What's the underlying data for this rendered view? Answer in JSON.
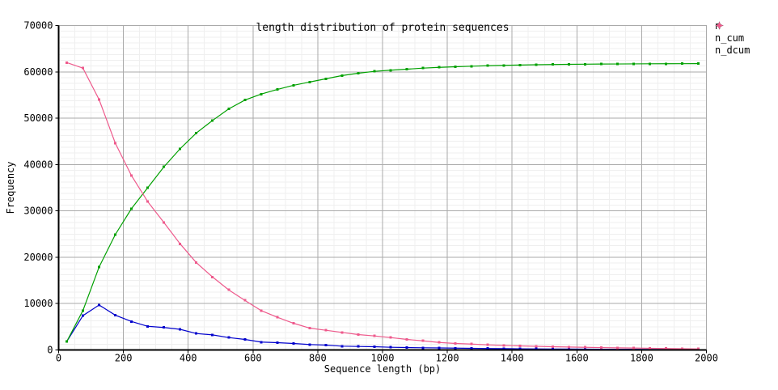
{
  "window": {
    "background": "#ffffff"
  },
  "chart_data": {
    "type": "line",
    "title": "length distribution of protein sequences",
    "xlabel": "Sequence length (bp)",
    "ylabel": "Frequency",
    "xlim": [
      0,
      2000
    ],
    "ylim": [
      0,
      70000
    ],
    "x_ticks": [
      0,
      200,
      400,
      600,
      800,
      1000,
      1200,
      1400,
      1600,
      1800,
      2000
    ],
    "y_ticks": [
      0,
      10000,
      20000,
      30000,
      40000,
      50000,
      60000,
      70000
    ],
    "x_minor_step": 50,
    "y_minor_step": 1250,
    "grid": true,
    "legend_position": "top-right-outside",
    "marker": "square",
    "x": [
      25,
      75,
      125,
      175,
      225,
      275,
      325,
      375,
      425,
      475,
      525,
      575,
      625,
      675,
      725,
      775,
      825,
      875,
      925,
      975,
      1025,
      1075,
      1125,
      1175,
      1225,
      1275,
      1325,
      1375,
      1425,
      1475,
      1525,
      1575,
      1625,
      1675,
      1725,
      1775,
      1825,
      1875,
      1925,
      1975
    ],
    "series": [
      {
        "name": "n",
        "color": "#0000CC",
        "values": [
          1800,
          7400,
          9700,
          7500,
          6150,
          5100,
          4850,
          4450,
          3550,
          3250,
          2670,
          2270,
          1700,
          1570,
          1400,
          1170,
          1050,
          820,
          750,
          700,
          580,
          520,
          470,
          430,
          390,
          350,
          310,
          280,
          250,
          230,
          210,
          190,
          170,
          155,
          140,
          130,
          120,
          110,
          100,
          95
        ]
      },
      {
        "name": "n_cum",
        "color": "#00A000",
        "values": [
          1800,
          8500,
          17900,
          24900,
          30500,
          35000,
          39500,
          43400,
          46800,
          49500,
          52000,
          53900,
          55200,
          56200,
          57100,
          57800,
          58500,
          59200,
          59700,
          60100,
          60350,
          60570,
          60800,
          60970,
          61100,
          61220,
          61320,
          61400,
          61470,
          61530,
          61580,
          61620,
          61650,
          61680,
          61700,
          61720,
          61740,
          61750,
          61760,
          61770
        ]
      },
      {
        "name": "n_dcum",
        "color": "#EE5A8C",
        "values": [
          62000,
          60800,
          54000,
          44600,
          37600,
          32000,
          27500,
          22900,
          18850,
          15750,
          12970,
          10700,
          8500,
          7050,
          5760,
          4710,
          4240,
          3790,
          3320,
          3020,
          2670,
          2270,
          1970,
          1620,
          1400,
          1270,
          1100,
          980,
          870,
          780,
          700,
          630,
          570,
          510,
          460,
          410,
          360,
          310,
          260,
          220
        ]
      }
    ],
    "style_colors": {
      "major_grid": "#aaaaaa",
      "minor_grid": "#efefef",
      "axis": "#000000",
      "outer_border": "#aaaaaa",
      "text": "#000000"
    }
  }
}
